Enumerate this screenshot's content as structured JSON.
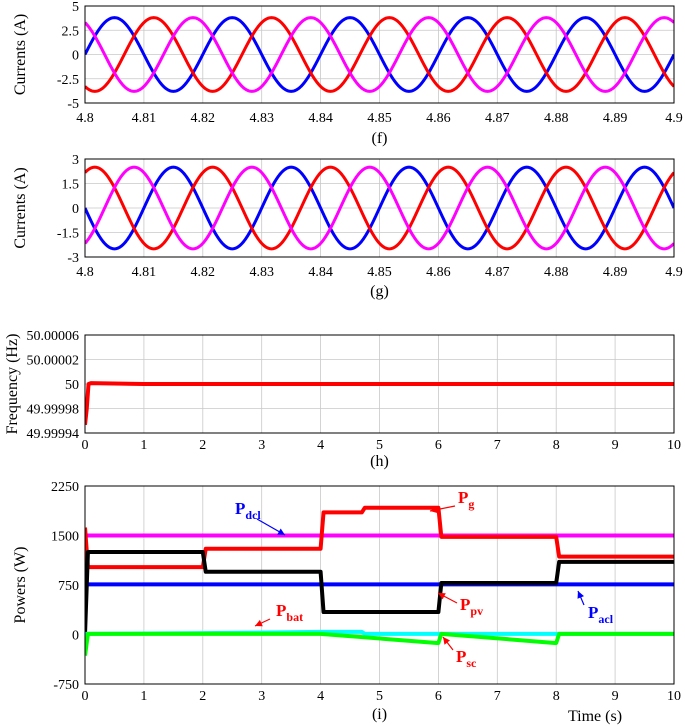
{
  "chart_data": [
    {
      "type": "line",
      "caption": "(f)",
      "ylabel": "Currents (A)",
      "xlim": [
        4.8,
        4.9
      ],
      "ylim": [
        -5,
        5
      ],
      "xticks": [
        "4.8",
        "4.81",
        "4.82",
        "4.83",
        "4.84",
        "4.85",
        "4.86",
        "4.87",
        "4.88",
        "4.89",
        "4.9"
      ],
      "yticks": [
        "5",
        "2.5",
        "0",
        "-2.5",
        "-5"
      ],
      "grid": true,
      "series": [
        {
          "color": "#0000ff",
          "amplitude": 3.8,
          "frequency_hz": 50,
          "phase_deg": 0
        },
        {
          "color": "#ff0000",
          "amplitude": 3.8,
          "frequency_hz": 50,
          "phase_deg": -120
        },
        {
          "color": "#ff00ff",
          "amplitude": 3.8,
          "frequency_hz": 50,
          "phase_deg": 120
        }
      ]
    },
    {
      "type": "line",
      "caption": "(g)",
      "ylabel": "Currents (A)",
      "xlim": [
        4.8,
        4.9
      ],
      "ylim": [
        -3,
        3
      ],
      "xticks": [
        "4.8",
        "4.81",
        "4.82",
        "4.83",
        "4.84",
        "4.85",
        "4.86",
        "4.87",
        "4.88",
        "4.89",
        "4.9"
      ],
      "yticks": [
        "3",
        "1.5",
        "0",
        "-1.5",
        "-3"
      ],
      "grid": true,
      "series": [
        {
          "color": "#0000ff",
          "amplitude": 2.5,
          "frequency_hz": 50,
          "phase_deg": 180
        },
        {
          "color": "#ff0000",
          "amplitude": 2.5,
          "frequency_hz": 50,
          "phase_deg": 60
        },
        {
          "color": "#ff00ff",
          "amplitude": 2.5,
          "frequency_hz": 50,
          "phase_deg": -60
        }
      ]
    },
    {
      "type": "line",
      "caption": "(h)",
      "ylabel": "Frequency (Hz)",
      "xlim": [
        0,
        10
      ],
      "ylim": [
        49.99994,
        50.00006
      ],
      "xticks": [
        "0",
        "1",
        "2",
        "3",
        "4",
        "5",
        "6",
        "7",
        "8",
        "9",
        "10"
      ],
      "yticks": [
        "50.00006",
        "50.00002",
        "50",
        "49.99998",
        "49.99994"
      ],
      "grid": true,
      "series": [
        {
          "color": "#ff0000",
          "points": [
            [
              0,
              49.99995
            ],
            [
              0.03,
              49.99997
            ],
            [
              0.06,
              50.0
            ],
            [
              0.1,
              50.000001
            ],
            [
              1,
              50.0
            ],
            [
              2,
              50.0
            ],
            [
              3,
              50.0
            ],
            [
              4,
              50.0
            ],
            [
              5,
              50.0
            ],
            [
              6,
              50.0
            ],
            [
              7,
              50.0
            ],
            [
              8,
              50.0
            ],
            [
              9,
              50.0
            ],
            [
              10,
              50.0
            ]
          ]
        }
      ]
    },
    {
      "type": "line",
      "caption": "(i)",
      "ylabel": "Powers (W)",
      "xlabel": "Time (s)",
      "xlim": [
        0,
        10
      ],
      "ylim": [
        -750,
        2250
      ],
      "xticks": [
        "0",
        "1",
        "2",
        "3",
        "4",
        "5",
        "6",
        "7",
        "8",
        "9",
        "10"
      ],
      "yticks": [
        "2250",
        "1500",
        "750",
        "0",
        "-750"
      ],
      "grid": true,
      "series": [
        {
          "name": "P_dcl",
          "color": "#ff00ff",
          "points": [
            [
              0,
              1500
            ],
            [
              10,
              1500
            ]
          ]
        },
        {
          "name": "P_acl",
          "color": "#0000ff",
          "points": [
            [
              0,
              760
            ],
            [
              10,
              760
            ]
          ]
        },
        {
          "name": "P_g",
          "color": "#ff0000",
          "points": [
            [
              0,
              1620
            ],
            [
              0.05,
              1020
            ],
            [
              2,
              1020
            ],
            [
              2.05,
              1300
            ],
            [
              4,
              1300
            ],
            [
              4.05,
              1850
            ],
            [
              4.7,
              1850
            ],
            [
              4.75,
              1920
            ],
            [
              6,
              1920
            ],
            [
              6.05,
              1480
            ],
            [
              8,
              1480
            ],
            [
              8.05,
              1180
            ],
            [
              10,
              1180
            ]
          ]
        },
        {
          "name": "P_pv",
          "color": "#000000",
          "points": [
            [
              0,
              0
            ],
            [
              0.05,
              1250
            ],
            [
              2,
              1250
            ],
            [
              2.05,
              950
            ],
            [
              4,
              950
            ],
            [
              4.05,
              340
            ],
            [
              6,
              340
            ],
            [
              6.05,
              780
            ],
            [
              8,
              780
            ],
            [
              8.05,
              1100
            ],
            [
              10,
              1100
            ]
          ]
        },
        {
          "name": "P_bat",
          "color": "#00ffff",
          "points": [
            [
              0,
              10
            ],
            [
              2,
              20
            ],
            [
              4,
              40
            ],
            [
              4.7,
              40
            ],
            [
              4.75,
              10
            ],
            [
              10,
              10
            ]
          ]
        },
        {
          "name": "P_sc",
          "color": "#00ff00",
          "points": [
            [
              0,
              -320
            ],
            [
              0.05,
              10
            ],
            [
              2,
              10
            ],
            [
              4,
              10
            ],
            [
              6,
              -130
            ],
            [
              6.05,
              10
            ],
            [
              8,
              -130
            ],
            [
              8.05,
              10
            ],
            [
              10,
              10
            ]
          ]
        }
      ],
      "annotations": [
        {
          "main": "P",
          "sub": "dcl",
          "color": "#0000ff"
        },
        {
          "main": "P",
          "sub": "g",
          "color": "#ff0000"
        },
        {
          "main": "P",
          "sub": "pv",
          "color": "#ff0000"
        },
        {
          "main": "P",
          "sub": "bat",
          "color": "#ff0000"
        },
        {
          "main": "P",
          "sub": "acl",
          "color": "#0000ff"
        },
        {
          "main": "P",
          "sub": "sc",
          "color": "#ff0000"
        }
      ]
    }
  ]
}
